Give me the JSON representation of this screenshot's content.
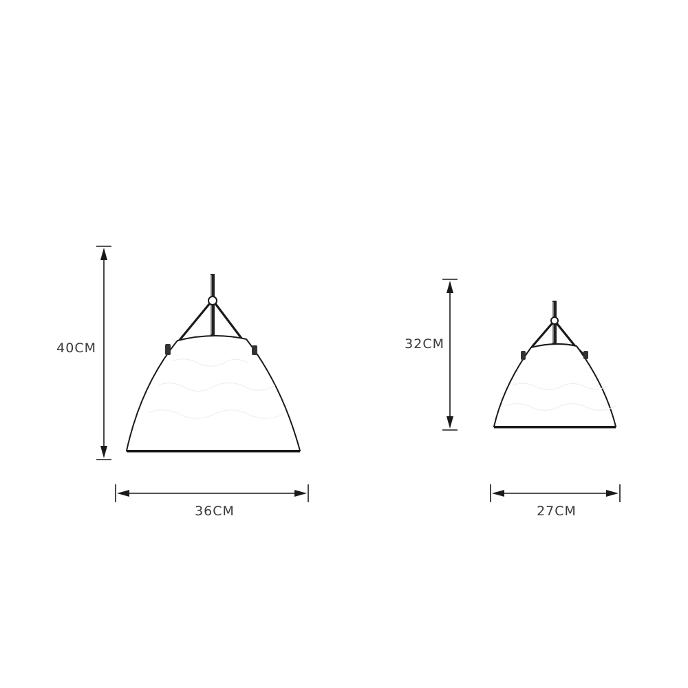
{
  "dimensions": {
    "large": {
      "height_label": "40CM",
      "width_label": "36CM"
    },
    "small": {
      "height_label": "32CM",
      "width_label": "27CM"
    }
  },
  "colors": {
    "line": "#1a1a1a",
    "text": "#3a3a3a",
    "background": "#ffffff"
  }
}
